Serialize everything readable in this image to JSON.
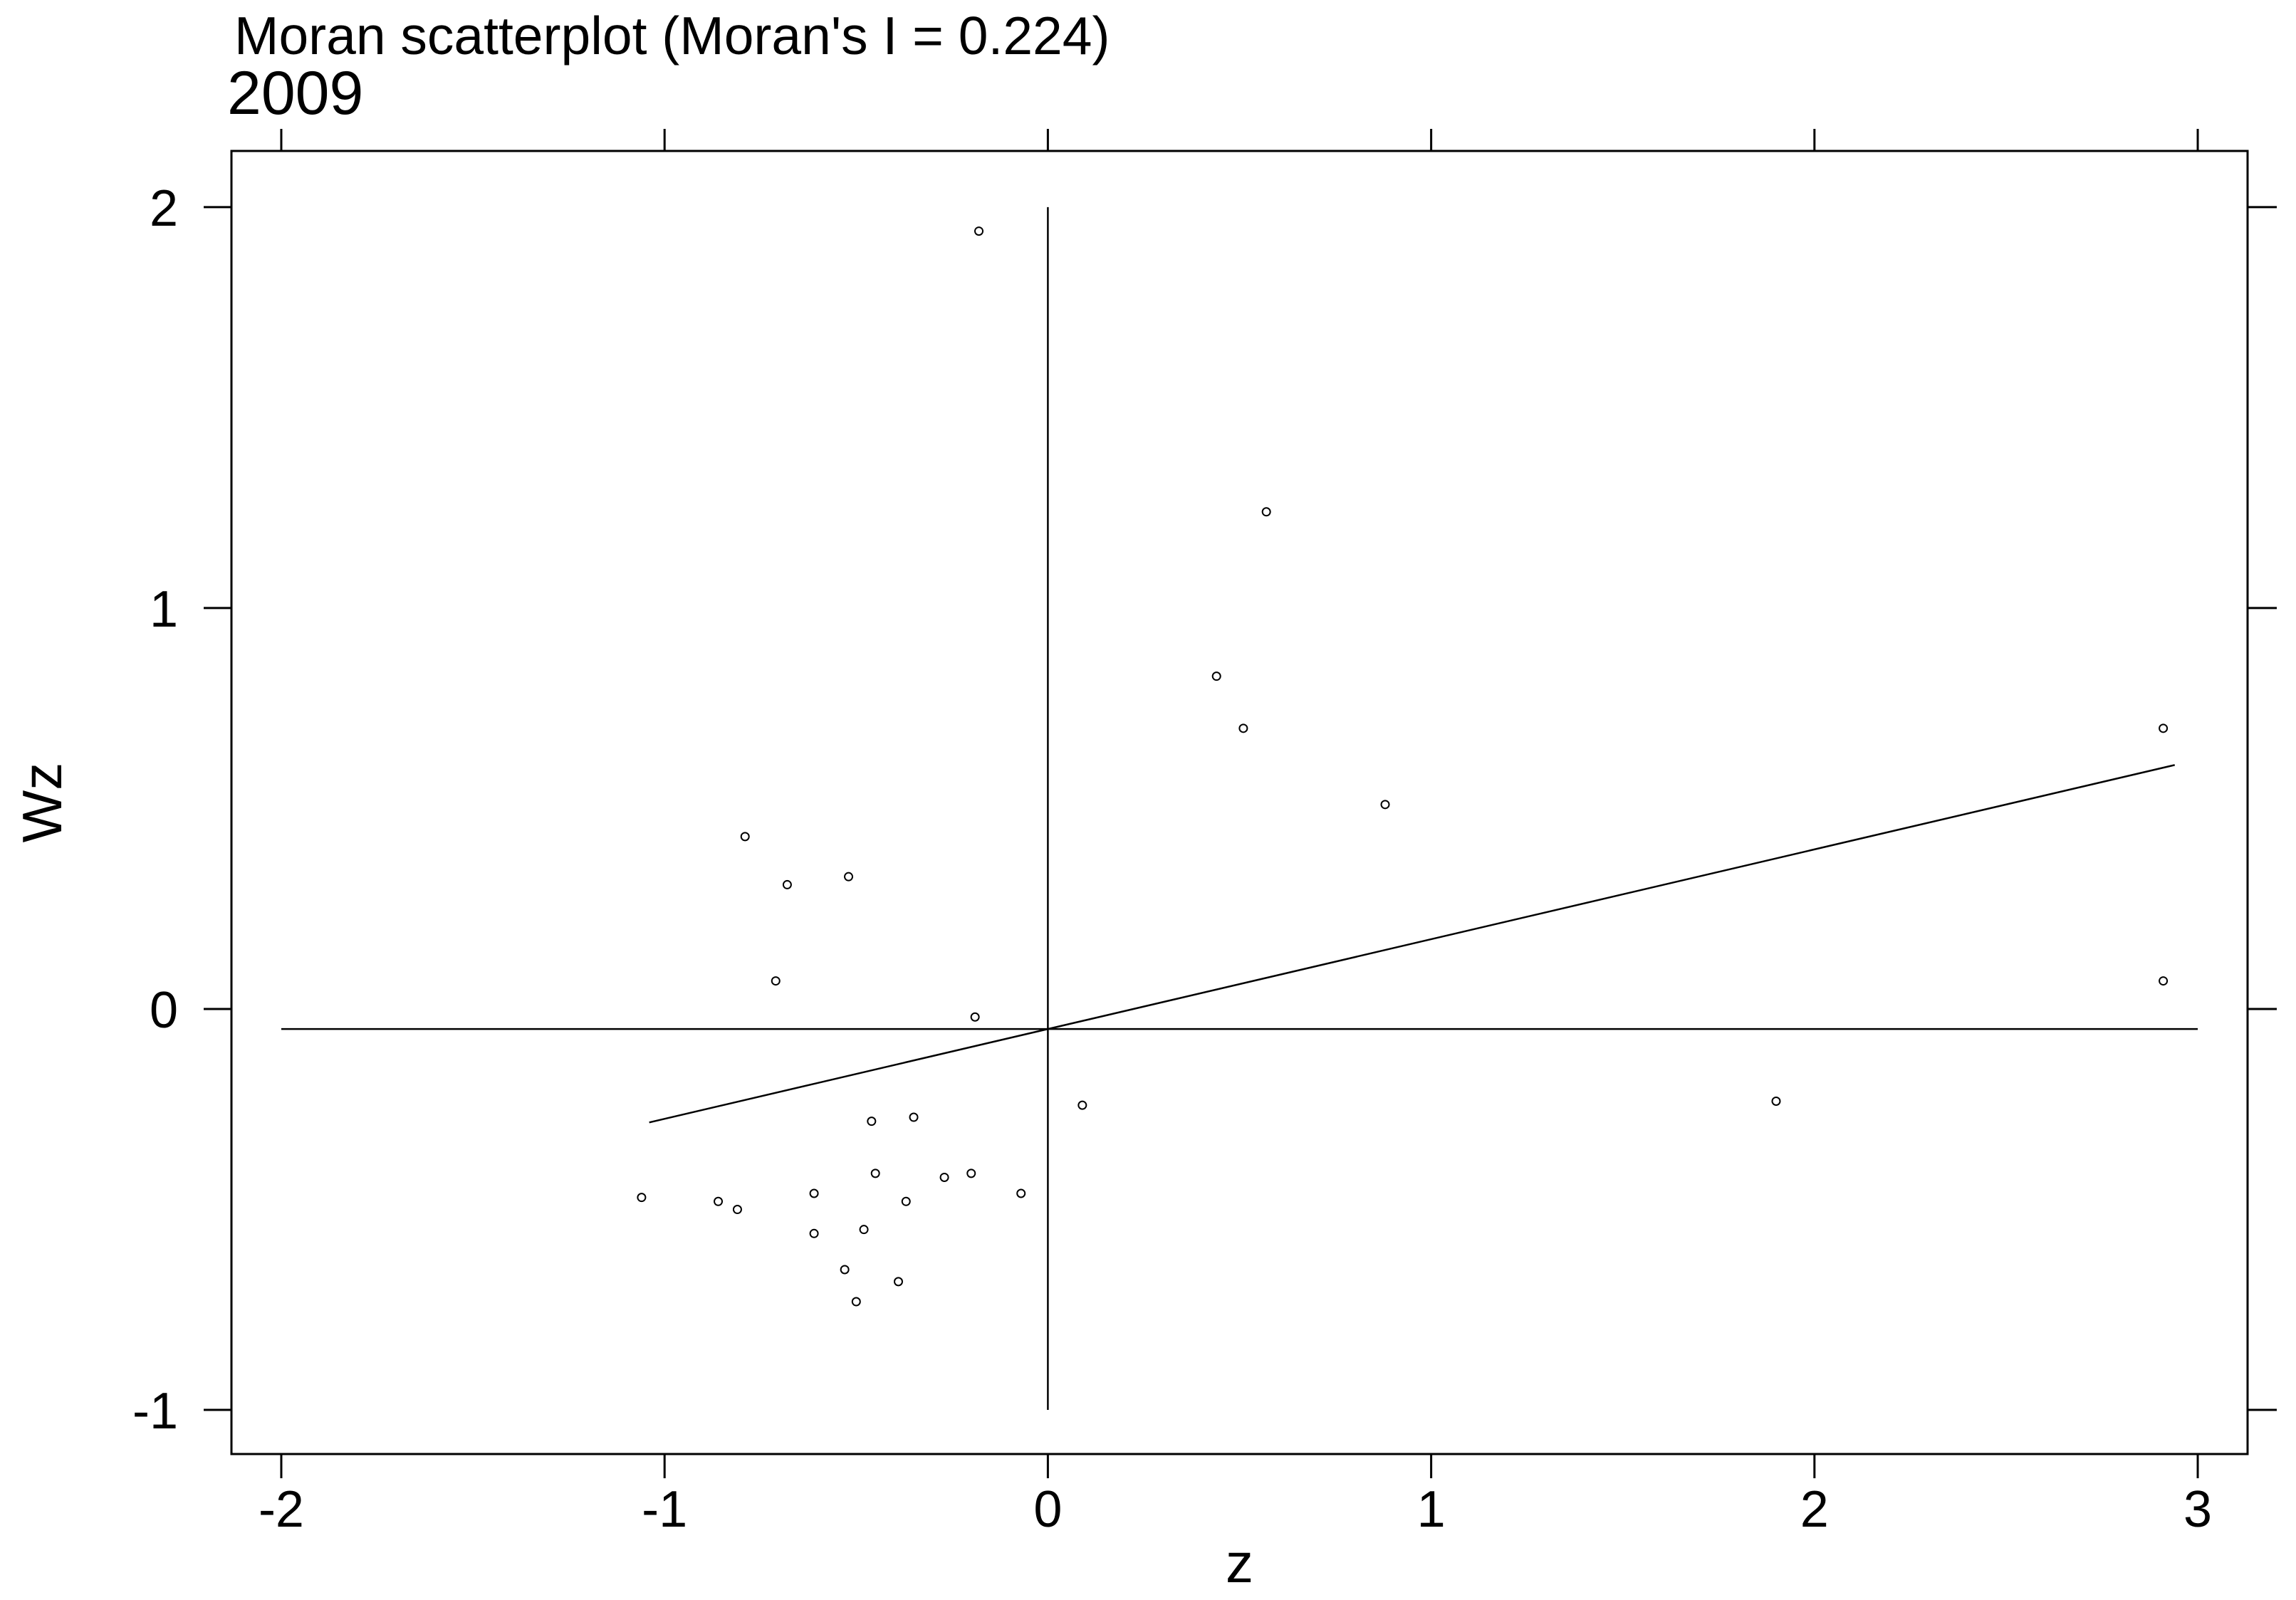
{
  "chart_data": {
    "type": "scatter",
    "title": "Moran scatterplot (Moran's I = 0.224)",
    "subtitle": "2009",
    "xlabel": "z",
    "ylabel": "Wz",
    "xlim": [
      -2.13,
      3.13
    ],
    "ylim": [
      -1.11,
      2.14
    ],
    "grid": false,
    "x_ticks": {
      "values": [
        -2,
        -1,
        0,
        1,
        2,
        3
      ],
      "labels": [
        "-2",
        "-1",
        "0",
        "1",
        "2",
        "3"
      ]
    },
    "y_ticks": {
      "values": [
        -1,
        0,
        1,
        2
      ],
      "labels": [
        "-1",
        "0",
        "1",
        "2"
      ]
    },
    "points": {
      "x": [
        -0.18,
        0.57,
        0.44,
        0.51,
        0.88,
        2.91,
        2.91,
        1.9,
        0.09,
        -0.19,
        -0.79,
        -0.68,
        -0.52,
        -0.71,
        -0.46,
        -0.35,
        -0.45,
        -0.27,
        -0.2,
        -0.07,
        -0.37,
        -0.61,
        -0.48,
        -0.61,
        -1.06,
        -0.86,
        -0.81,
        -0.53,
        -0.39,
        -0.5
      ],
      "y": [
        1.94,
        1.24,
        0.83,
        0.7,
        0.51,
        0.7,
        0.07,
        -0.23,
        -0.24,
        -0.02,
        0.43,
        0.31,
        0.33,
        0.07,
        -0.28,
        -0.27,
        -0.41,
        -0.42,
        -0.41,
        -0.46,
        -0.48,
        -0.46,
        -0.55,
        -0.56,
        -0.47,
        -0.48,
        -0.5,
        -0.65,
        -0.68,
        -0.73
      ]
    },
    "fit_line": {
      "slope": 0.224,
      "intercept": -0.05,
      "x_range": [
        -1.04,
        2.94
      ]
    },
    "reference_lines": {
      "vertical": {
        "x": 0,
        "y_range": [
          -1,
          2
        ]
      },
      "horizontal": {
        "y": -0.05,
        "x_range": [
          -2,
          3
        ]
      }
    },
    "colors": {
      "background": "#ffffff",
      "ink": "#000000"
    }
  }
}
